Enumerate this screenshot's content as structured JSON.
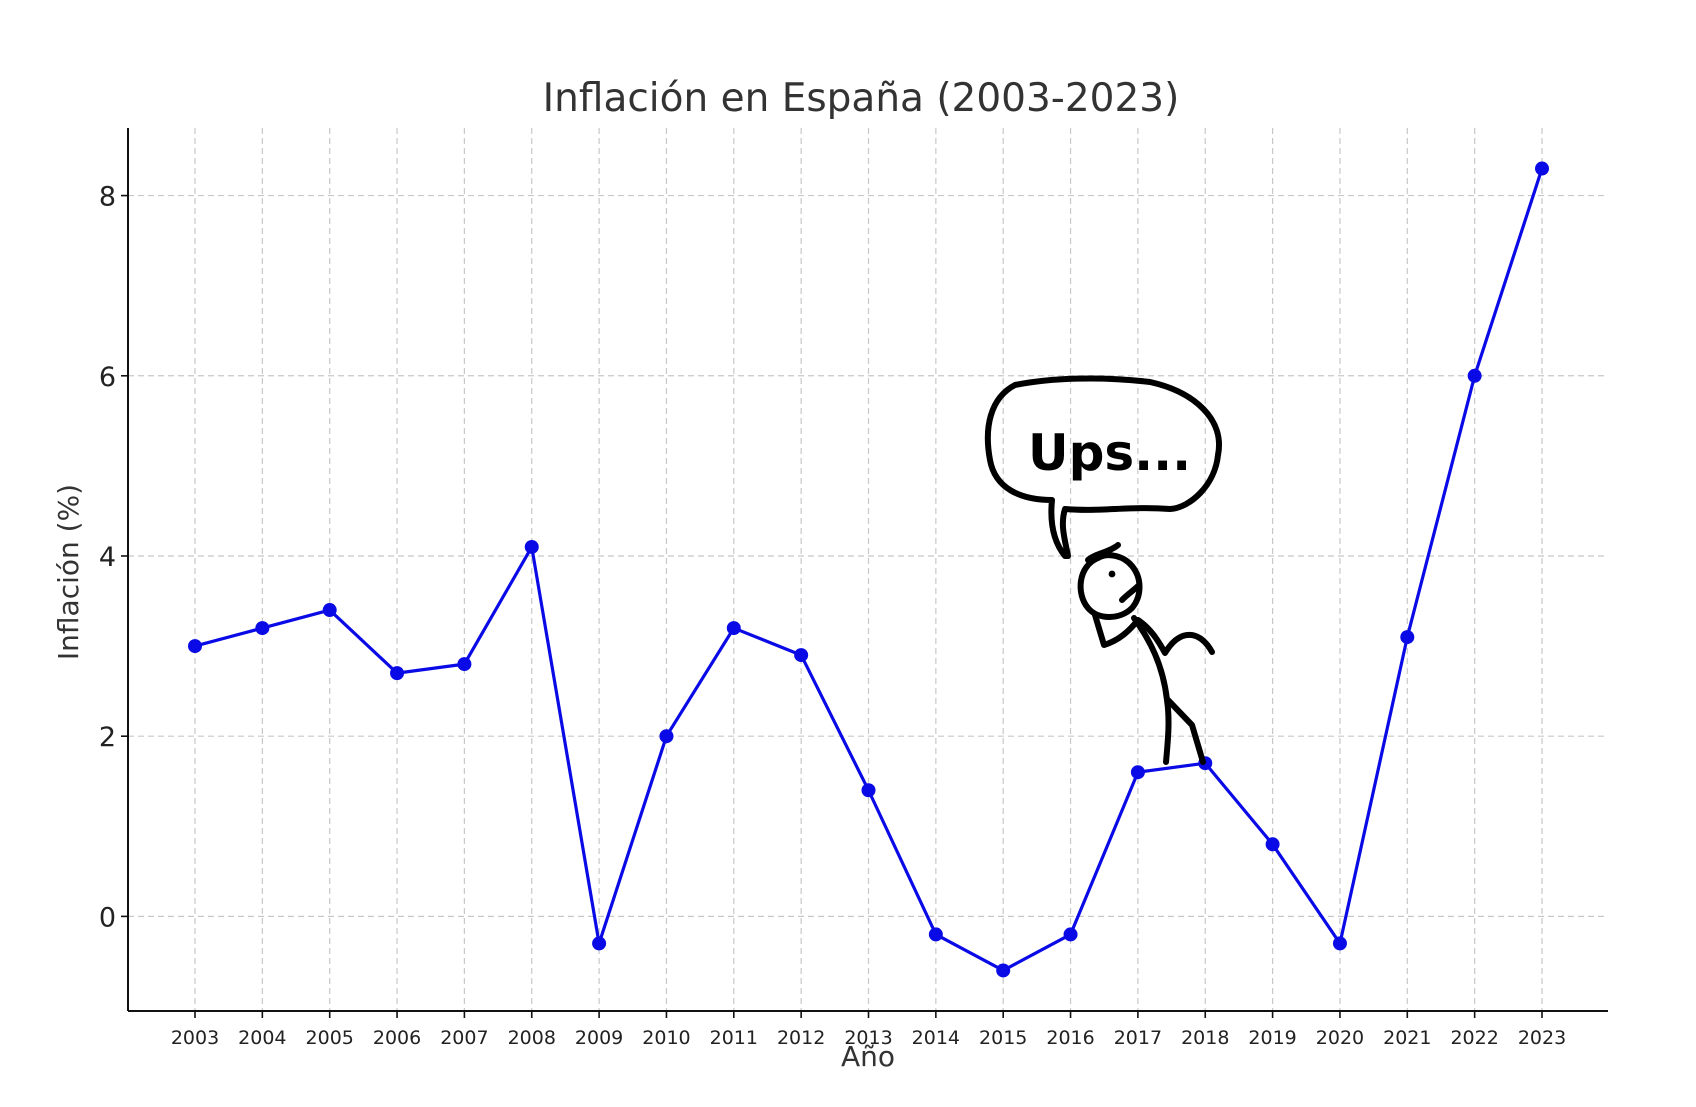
{
  "chart_data": {
    "type": "line",
    "title": "Inflación en España (2003-2023)",
    "xlabel": "Año",
    "ylabel": "Inflación (%)",
    "x": [
      "2003",
      "2004",
      "2005",
      "2006",
      "2007",
      "2008",
      "2009",
      "2010",
      "2011",
      "2012",
      "2013",
      "2014",
      "2015",
      "2016",
      "2017",
      "2018",
      "2019",
      "2020",
      "2021",
      "2022",
      "2023"
    ],
    "series": [
      {
        "values": [
          3.0,
          3.2,
          3.4,
          2.7,
          2.8,
          4.1,
          -0.3,
          2.0,
          3.2,
          2.9,
          1.4,
          -0.2,
          -0.6,
          -0.2,
          1.6,
          1.7,
          0.8,
          -0.3,
          3.1,
          6.0,
          8.3
        ],
        "color": "#0a0ae6",
        "marker": "circle"
      }
    ],
    "ylim": [
      -1.05,
      8.75
    ],
    "yticks": [
      0,
      2,
      4,
      6,
      8
    ],
    "grid": true,
    "annotations": [
      {
        "type": "speech-bubble-cartoon",
        "text": "Ups...",
        "near_x": "2017"
      }
    ]
  }
}
